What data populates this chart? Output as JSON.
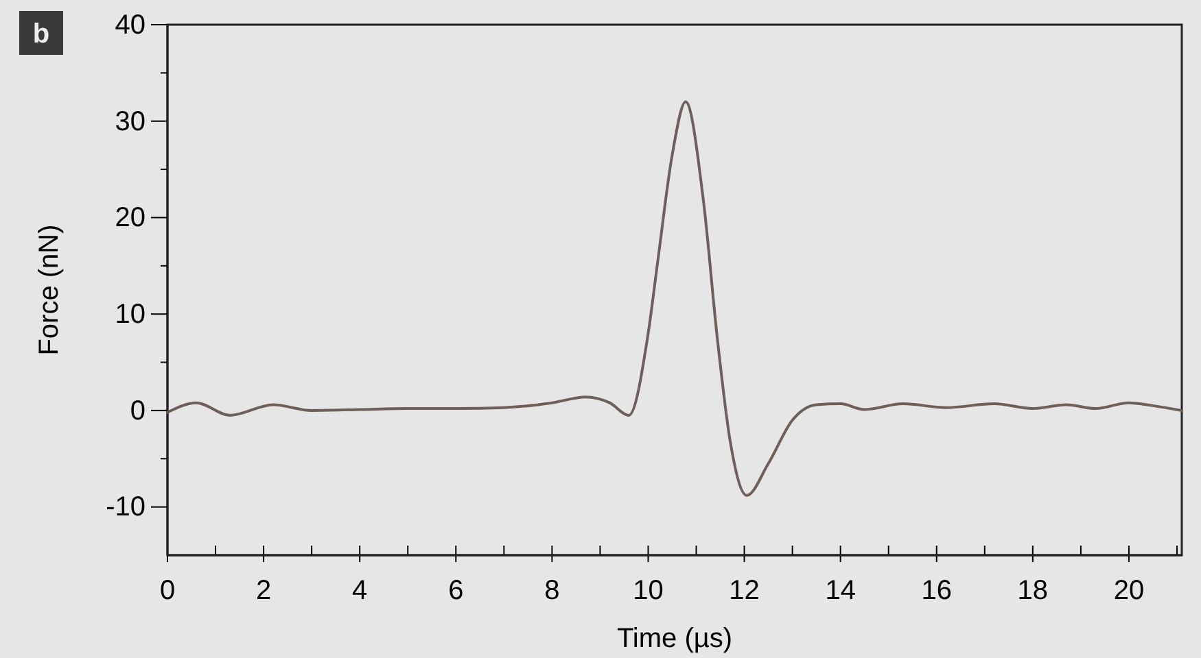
{
  "chart_data": {
    "type": "line",
    "xlabel": "Time (µs)",
    "ylabel": "Force (nN)",
    "annotations": [
      "b"
    ],
    "xlim": [
      0,
      21.1
    ],
    "ylim": [
      -15,
      40
    ],
    "xticks": [
      0,
      {
        "value": 1,
        "label": null
      },
      2,
      {
        "value": 3,
        "label": null
      },
      4,
      {
        "value": 5,
        "label": null
      },
      6,
      {
        "value": 7,
        "label": null
      },
      8,
      {
        "value": 9,
        "label": null
      },
      10,
      {
        "value": 11,
        "label": null
      },
      12,
      {
        "value": 13,
        "label": null
      },
      14,
      {
        "value": 15,
        "label": null
      },
      16,
      {
        "value": 17,
        "label": null
      },
      18,
      {
        "value": 19,
        "label": null
      },
      20,
      {
        "value": 21,
        "label": null
      }
    ],
    "yticks": [
      -10,
      {
        "value": -5,
        "label": null
      },
      0,
      {
        "value": 5,
        "label": null
      },
      10,
      {
        "value": 15,
        "label": null
      },
      20,
      {
        "value": 25,
        "label": null
      },
      30,
      {
        "value": 35,
        "label": null
      },
      40
    ],
    "grid": false,
    "marker": "none",
    "line_style": "solid",
    "series": [
      {
        "color": "#6e5f5a",
        "x": [
          0,
          0.6,
          1.3,
          2.2,
          3,
          4,
          5,
          6,
          7,
          8,
          8.7,
          9.2,
          9.6,
          10,
          10.2,
          10.5,
          10.78,
          11.15,
          11.44,
          11.7,
          12.05,
          12.5,
          13,
          13.5,
          14,
          14.5,
          15.3,
          16.2,
          17.2,
          18,
          18.7,
          19.3,
          20,
          20.5,
          21.1
        ],
        "values": [
          -0.2,
          0.8,
          -0.5,
          0.6,
          0,
          0.1,
          0.2,
          0.2,
          0.3,
          0.8,
          1.4,
          0.8,
          -0.5,
          8,
          15.5,
          26.5,
          32,
          21.7,
          7.4,
          -3,
          -8.8,
          -5.5,
          -1,
          0.6,
          0.7,
          0.1,
          0.7,
          0.3,
          0.7,
          0.2,
          0.6,
          0.2,
          0.8,
          0.5,
          0
        ]
      }
    ]
  }
}
